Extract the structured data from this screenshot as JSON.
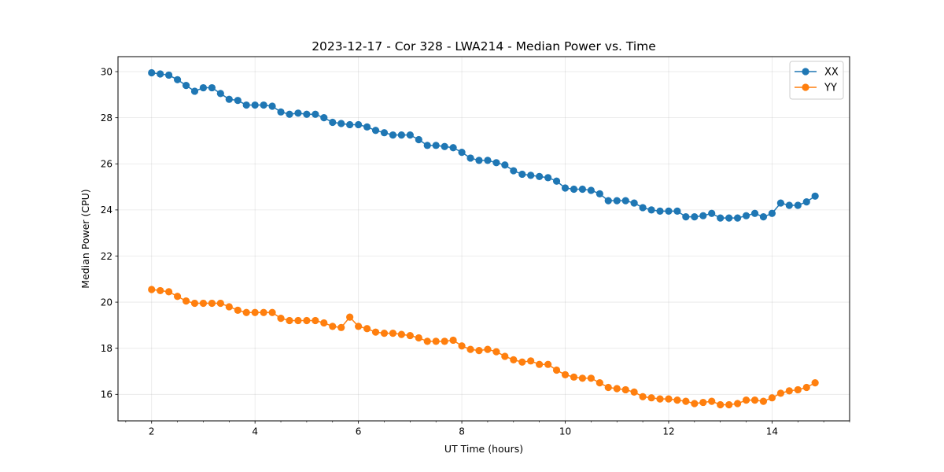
{
  "chart_data": {
    "type": "line",
    "title": "2023-12-17 - Cor 328 - LWA214 - Median Power vs. Time",
    "xlabel": "UT Time (hours)",
    "ylabel": "Median Power (CPU)",
    "xlim": [
      1.35,
      15.5
    ],
    "ylim": [
      14.85,
      30.65
    ],
    "xticks": [
      2,
      4,
      6,
      8,
      10,
      12,
      14
    ],
    "yticks": [
      16,
      18,
      20,
      22,
      24,
      26,
      28,
      30
    ],
    "xtick_labels": [
      "2",
      "4",
      "6",
      "8",
      "10",
      "12",
      "14"
    ],
    "ytick_labels": [
      "16",
      "18",
      "20",
      "22",
      "24",
      "26",
      "28",
      "30"
    ],
    "grid": true,
    "legend": "top-right",
    "series": [
      {
        "name": "XX",
        "color": "#1f77b4",
        "x": [
          2.0,
          2.167,
          2.333,
          2.5,
          2.667,
          2.833,
          3.0,
          3.167,
          3.333,
          3.5,
          3.667,
          3.833,
          4.0,
          4.167,
          4.333,
          4.5,
          4.667,
          4.833,
          5.0,
          5.167,
          5.333,
          5.5,
          5.667,
          5.833,
          6.0,
          6.167,
          6.333,
          6.5,
          6.667,
          6.833,
          7.0,
          7.167,
          7.333,
          7.5,
          7.667,
          7.833,
          8.0,
          8.167,
          8.333,
          8.5,
          8.667,
          8.833,
          9.0,
          9.167,
          9.333,
          9.5,
          9.667,
          9.833,
          10.0,
          10.167,
          10.333,
          10.5,
          10.667,
          10.833,
          11.0,
          11.167,
          11.333,
          11.5,
          11.667,
          11.833,
          12.0,
          12.167,
          12.333,
          12.5,
          12.667,
          12.833,
          13.0,
          13.167,
          13.333,
          13.5,
          13.667,
          13.833,
          14.0,
          14.167,
          14.333,
          14.5,
          14.667,
          14.833
        ],
        "values": [
          29.95,
          29.9,
          29.85,
          29.65,
          29.4,
          29.15,
          29.3,
          29.3,
          29.05,
          28.8,
          28.75,
          28.55,
          28.55,
          28.55,
          28.5,
          28.25,
          28.15,
          28.2,
          28.15,
          28.15,
          28.0,
          27.8,
          27.75,
          27.7,
          27.7,
          27.6,
          27.45,
          27.35,
          27.25,
          27.25,
          27.25,
          27.05,
          26.8,
          26.8,
          26.75,
          26.7,
          26.5,
          26.25,
          26.15,
          26.15,
          26.05,
          25.95,
          25.7,
          25.55,
          25.5,
          25.45,
          25.4,
          25.25,
          24.95,
          24.9,
          24.9,
          24.85,
          24.7,
          24.4,
          24.4,
          24.4,
          24.3,
          24.1,
          24.0,
          23.95,
          23.95,
          23.95,
          23.7,
          23.7,
          23.75,
          23.85,
          23.65,
          23.65,
          23.65,
          23.75,
          23.85,
          23.7,
          23.85,
          24.3,
          24.2,
          24.2,
          24.35,
          24.6
        ]
      },
      {
        "name": "YY",
        "color": "#ff7f0e",
        "x": [
          2.0,
          2.167,
          2.333,
          2.5,
          2.667,
          2.833,
          3.0,
          3.167,
          3.333,
          3.5,
          3.667,
          3.833,
          4.0,
          4.167,
          4.333,
          4.5,
          4.667,
          4.833,
          5.0,
          5.167,
          5.333,
          5.5,
          5.667,
          5.833,
          6.0,
          6.167,
          6.333,
          6.5,
          6.667,
          6.833,
          7.0,
          7.167,
          7.333,
          7.5,
          7.667,
          7.833,
          8.0,
          8.167,
          8.333,
          8.5,
          8.667,
          8.833,
          9.0,
          9.167,
          9.333,
          9.5,
          9.667,
          9.833,
          10.0,
          10.167,
          10.333,
          10.5,
          10.667,
          10.833,
          11.0,
          11.167,
          11.333,
          11.5,
          11.667,
          11.833,
          12.0,
          12.167,
          12.333,
          12.5,
          12.667,
          12.833,
          13.0,
          13.167,
          13.333,
          13.5,
          13.667,
          13.833,
          14.0,
          14.167,
          14.333,
          14.5,
          14.667,
          14.833
        ],
        "values": [
          20.55,
          20.5,
          20.45,
          20.25,
          20.05,
          19.95,
          19.95,
          19.95,
          19.95,
          19.8,
          19.65,
          19.55,
          19.55,
          19.55,
          19.55,
          19.3,
          19.2,
          19.2,
          19.2,
          19.2,
          19.1,
          18.95,
          18.9,
          19.35,
          18.95,
          18.85,
          18.7,
          18.65,
          18.65,
          18.6,
          18.55,
          18.45,
          18.3,
          18.3,
          18.3,
          18.35,
          18.1,
          17.95,
          17.9,
          17.95,
          17.85,
          17.65,
          17.5,
          17.4,
          17.45,
          17.3,
          17.3,
          17.05,
          16.85,
          16.75,
          16.7,
          16.7,
          16.5,
          16.3,
          16.25,
          16.2,
          16.1,
          15.9,
          15.85,
          15.8,
          15.8,
          15.75,
          15.7,
          15.6,
          15.65,
          15.7,
          15.55,
          15.55,
          15.6,
          15.75,
          15.75,
          15.7,
          15.85,
          16.05,
          16.15,
          16.2,
          16.3,
          16.5
        ]
      }
    ]
  }
}
